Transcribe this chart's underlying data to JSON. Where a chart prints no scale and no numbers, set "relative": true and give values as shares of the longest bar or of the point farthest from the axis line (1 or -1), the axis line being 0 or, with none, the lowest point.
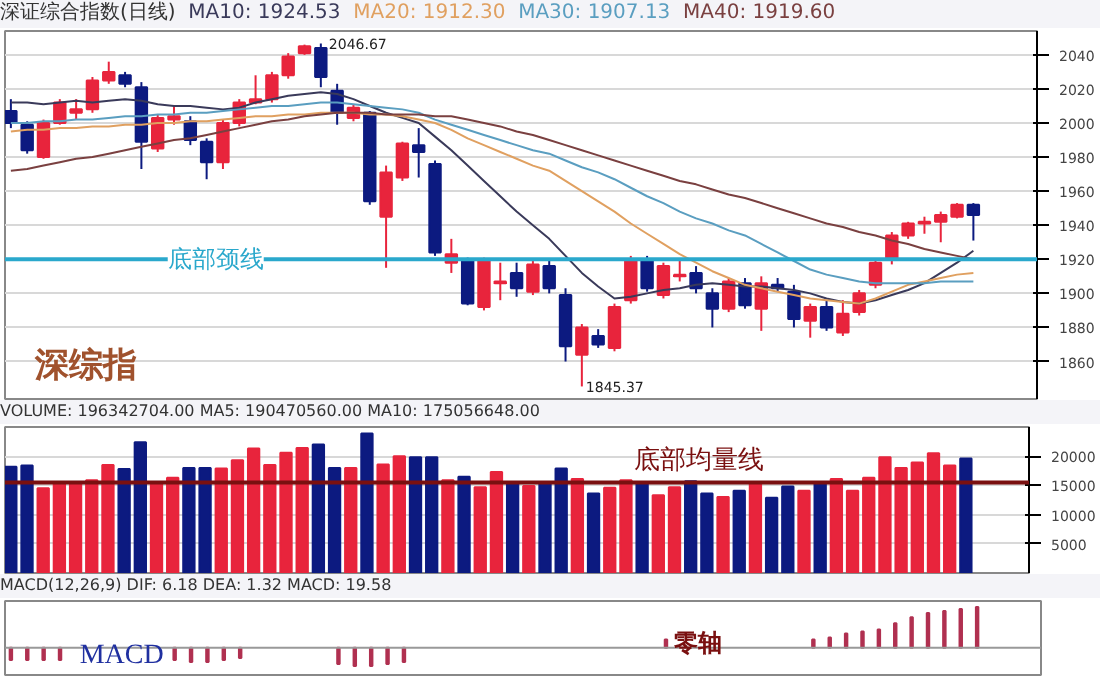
{
  "chart_data": [
    {
      "type": "candlestick",
      "title": "深证综合指数(日线)",
      "categories": [
        null,
        null,
        null,
        null,
        null,
        null,
        null,
        null,
        null,
        null,
        null,
        null,
        null,
        null,
        null,
        null,
        null,
        null,
        null,
        null,
        null,
        null,
        null,
        null,
        null,
        null,
        null,
        null,
        null,
        null,
        null,
        null,
        null,
        null,
        null,
        null,
        null,
        null,
        null,
        null,
        null,
        null,
        null,
        null,
        null,
        null,
        null,
        null,
        null,
        null,
        null,
        null,
        null,
        null,
        null,
        null,
        null,
        null,
        null,
        null
      ],
      "ohlc": [
        [
          2007,
          2014,
          1997,
          2000
        ],
        [
          1999,
          2001,
          1982,
          1984
        ],
        [
          1980,
          2002,
          1979,
          2000
        ],
        [
          2000,
          2014,
          1999,
          2012
        ],
        [
          2006,
          2014,
          2002,
          2008
        ],
        [
          2008,
          2027,
          2006,
          2025
        ],
        [
          2025,
          2036,
          2023,
          2030
        ],
        [
          2028,
          2030,
          2021,
          2023
        ],
        [
          2021,
          2024,
          1973,
          1989
        ],
        [
          1985,
          2005,
          1983,
          2003
        ],
        [
          2002,
          2010,
          1999,
          2004
        ],
        [
          2001,
          2004,
          1987,
          1990
        ],
        [
          1989,
          1991,
          1967,
          1977
        ],
        [
          1977,
          2002,
          1973,
          2000
        ],
        [
          2000,
          2014,
          1998,
          2012
        ],
        [
          2012,
          2028,
          2011,
          2014
        ],
        [
          2014,
          2030,
          2012,
          2028
        ],
        [
          2028,
          2041,
          2026,
          2039
        ],
        [
          2041,
          2046,
          2040,
          2045
        ],
        [
          2044,
          2046.67,
          2021,
          2027
        ],
        [
          2019,
          2023,
          1999,
          2006
        ],
        [
          2003,
          2011,
          2001,
          2009
        ],
        [
          2006,
          2007,
          1952,
          1954
        ],
        [
          1945,
          1975,
          1915,
          1971
        ],
        [
          1968,
          1989,
          1966,
          1988
        ],
        [
          1987,
          1997,
          1968,
          1983
        ],
        [
          1976,
          1978,
          1922,
          1924
        ],
        [
          1918,
          1932,
          1912,
          1923
        ],
        [
          1919,
          1921,
          1893,
          1894
        ],
        [
          1892,
          1921,
          1890,
          1919
        ],
        [
          1906,
          1918,
          1896,
          1907
        ],
        [
          1912,
          1918,
          1898,
          1903
        ],
        [
          1901,
          1919,
          1899,
          1917
        ],
        [
          1916,
          1920,
          1900,
          1903
        ],
        [
          1899,
          1903,
          1860,
          1869
        ],
        [
          1864,
          1882,
          1845.37,
          1880
        ],
        [
          1875,
          1879,
          1868,
          1870
        ],
        [
          1868,
          1894,
          1866,
          1892
        ],
        [
          1896,
          1922,
          1894,
          1920
        ],
        [
          1920,
          1922,
          1901,
          1903
        ],
        [
          1899,
          1918,
          1897,
          1916
        ],
        [
          1910,
          1919,
          1907,
          1911
        ],
        [
          1912,
          1916,
          1900,
          1903
        ],
        [
          1900,
          1903,
          1880,
          1891
        ],
        [
          1891,
          1909,
          1889,
          1907
        ],
        [
          1906,
          1909,
          1891,
          1893
        ],
        [
          1891,
          1910,
          1878,
          1906
        ],
        [
          1905,
          1909,
          1901,
          1903
        ],
        [
          1901,
          1905,
          1880,
          1885
        ],
        [
          1884,
          1894,
          1874,
          1892
        ],
        [
          1892,
          1896,
          1878,
          1880
        ],
        [
          1877,
          1896,
          1875,
          1888
        ],
        [
          1889,
          1902,
          1887,
          1900
        ],
        [
          1905,
          1920,
          1903,
          1918
        ],
        [
          1920,
          1936,
          1917,
          1934
        ],
        [
          1934,
          1942,
          1932,
          1941
        ],
        [
          1941,
          1945,
          1935,
          1942
        ],
        [
          1942,
          1948,
          1930,
          1946
        ],
        [
          1945,
          1953,
          1944,
          1952
        ],
        [
          1952,
          1953,
          1931,
          1946
        ]
      ],
      "colors": [
        "#0c1a80",
        "#0c1a80",
        "#e8243c",
        "#e8243c",
        "#e8243c",
        "#e8243c",
        "#e8243c",
        "#0c1a80",
        "#0c1a80",
        "#e8243c",
        "#e8243c",
        "#0c1a80",
        "#0c1a80",
        "#e8243c",
        "#e8243c",
        "#e8243c",
        "#e8243c",
        "#e8243c",
        "#e8243c",
        "#0c1a80",
        "#0c1a80",
        "#e8243c",
        "#0c1a80",
        "#e8243c",
        "#e8243c",
        "#0c1a80",
        "#0c1a80",
        "#e8243c",
        "#0c1a80",
        "#e8243c",
        "#e8243c",
        "#0c1a80",
        "#e8243c",
        "#0c1a80",
        "#0c1a80",
        "#e8243c",
        "#0c1a80",
        "#e8243c",
        "#e8243c",
        "#0c1a80",
        "#e8243c",
        "#e8243c",
        "#0c1a80",
        "#0c1a80",
        "#e8243c",
        "#0c1a80",
        "#e8243c",
        "#0c1a80",
        "#0c1a80",
        "#e8243c",
        "#0c1a80",
        "#e8243c",
        "#e8243c",
        "#e8243c",
        "#e8243c",
        "#e8243c",
        "#e8243c",
        "#e8243c",
        "#e8243c",
        "#0c1a80"
      ],
      "series": [
        {
          "name": "MA10: 1924.53",
          "color": "#3a3a5a",
          "type": "line",
          "values": [
            2012,
            2012,
            2011,
            2012,
            2013,
            2012,
            2013,
            2014,
            2013,
            2011,
            2010,
            2010,
            2009,
            2008,
            2009,
            2012,
            2014,
            2016,
            2017,
            2018,
            2017,
            2014,
            2010,
            2006,
            2003,
            2000,
            1992,
            1984,
            1975,
            1966,
            1957,
            1948,
            1940,
            1932,
            1922,
            1912,
            1904,
            1897,
            1898,
            1900,
            1902,
            1903,
            1905,
            1906,
            1905,
            1904,
            1904,
            1903,
            1902,
            1900,
            1897,
            1895,
            1894,
            1896,
            1899,
            1902,
            1906,
            1912,
            1918,
            1925
          ]
        },
        {
          "name": "MA20: 1912.30",
          "color": "#e0a060",
          "type": "line",
          "values": [
            1995,
            1996,
            1996,
            1997,
            1997,
            1998,
            1998,
            1999,
            1999,
            2000,
            2000,
            2001,
            2001,
            2002,
            2003,
            2004,
            2004,
            2005,
            2005,
            2006,
            2006,
            2006,
            2005,
            2005,
            2004,
            2002,
            2000,
            1996,
            1991,
            1987,
            1983,
            1979,
            1975,
            1972,
            1966,
            1960,
            1954,
            1948,
            1941,
            1935,
            1929,
            1923,
            1918,
            1913,
            1909,
            1905,
            1903,
            1901,
            1899,
            1897,
            1896,
            1895,
            1894,
            1897,
            1901,
            1905,
            1907,
            1909,
            1911,
            1912
          ]
        },
        {
          "name": "MA30: 1907.13",
          "color": "#5a9ec0",
          "type": "line",
          "values": [
            2000,
            2000,
            2001,
            2001,
            2002,
            2002,
            2003,
            2004,
            2004,
            2005,
            2005,
            2006,
            2006,
            2007,
            2008,
            2009,
            2010,
            2010,
            2011,
            2012,
            2012,
            2011,
            2010,
            2009,
            2008,
            2006,
            2002,
            1999,
            1996,
            1993,
            1990,
            1987,
            1984,
            1982,
            1978,
            1974,
            1971,
            1967,
            1962,
            1957,
            1953,
            1948,
            1944,
            1941,
            1937,
            1934,
            1929,
            1924,
            1919,
            1914,
            1911,
            1909,
            1907,
            1906,
            1906,
            1906,
            1906,
            1907,
            1907,
            1907
          ]
        },
        {
          "name": "MA40: 1919.60",
          "color": "#7a4040",
          "type": "line",
          "values": [
            1972,
            1973,
            1975,
            1977,
            1979,
            1980,
            1982,
            1984,
            1986,
            1988,
            1990,
            1991,
            1993,
            1995,
            1997,
            1999,
            2001,
            2002,
            2004,
            2005,
            2006,
            2006,
            2006,
            2005,
            2005,
            2005,
            2004,
            2004,
            2002,
            2000,
            1998,
            1995,
            1993,
            1990,
            1987,
            1984,
            1981,
            1978,
            1975,
            1972,
            1969,
            1966,
            1964,
            1961,
            1958,
            1956,
            1953,
            1950,
            1947,
            1944,
            1941,
            1939,
            1936,
            1934,
            1931,
            1929,
            1926,
            1924,
            1922,
            1920
          ]
        }
      ],
      "ylim": [
        1838,
        2054
      ],
      "yticks": [
        1860,
        1880,
        1900,
        1920,
        1940,
        1960,
        1980,
        2000,
        2020,
        2040
      ],
      "grid": "y",
      "legend": "top left",
      "tick_labels": "y",
      "ref_lines": [
        {
          "axis": "y",
          "value": 1920,
          "label": "底部颈线",
          "color": "#2aa8cc"
        }
      ],
      "annotations": [
        "深综指",
        "2046.67",
        "1845.37"
      ]
    },
    {
      "type": "bar",
      "title": "VOLUME: 196342704.00 MA5: 190470560.00 MA10: 175056648.00",
      "categories": [
        null,
        null,
        null,
        null,
        null,
        null,
        null,
        null,
        null,
        null,
        null,
        null,
        null,
        null,
        null,
        null,
        null,
        null,
        null,
        null,
        null,
        null,
        null,
        null,
        null,
        null,
        null,
        null,
        null,
        null,
        null,
        null,
        null,
        null,
        null,
        null,
        null,
        null,
        null,
        null,
        null,
        null,
        null,
        null,
        null,
        null,
        null,
        null,
        null,
        null,
        null,
        null,
        null,
        null,
        null,
        null,
        null,
        null,
        null,
        null
      ],
      "values": [
        18200,
        18400,
        14500,
        15300,
        15600,
        15900,
        18500,
        17800,
        22400,
        15600,
        16300,
        18000,
        18000,
        17900,
        19300,
        21300,
        18500,
        20600,
        21400,
        22000,
        18000,
        18000,
        23900,
        18600,
        20000,
        19800,
        19800,
        15900,
        16500,
        14700,
        17300,
        15400,
        14900,
        15600,
        17900,
        16100,
        13600,
        14600,
        15900,
        15600,
        13300,
        14700,
        15700,
        13600,
        13000,
        14100,
        15300,
        12900,
        14800,
        14100,
        15400,
        16100,
        14100,
        16300,
        19800,
        18000,
        18900,
        20500,
        18400,
        19600
      ],
      "colors": [
        "#0c1a80",
        "#0c1a80",
        "#e8243c",
        "#e8243c",
        "#e8243c",
        "#e8243c",
        "#e8243c",
        "#0c1a80",
        "#0c1a80",
        "#e8243c",
        "#e8243c",
        "#0c1a80",
        "#0c1a80",
        "#e8243c",
        "#e8243c",
        "#e8243c",
        "#e8243c",
        "#e8243c",
        "#e8243c",
        "#0c1a80",
        "#0c1a80",
        "#e8243c",
        "#0c1a80",
        "#e8243c",
        "#e8243c",
        "#0c1a80",
        "#0c1a80",
        "#e8243c",
        "#0c1a80",
        "#e8243c",
        "#e8243c",
        "#0c1a80",
        "#e8243c",
        "#0c1a80",
        "#0c1a80",
        "#e8243c",
        "#0c1a80",
        "#e8243c",
        "#e8243c",
        "#0c1a80",
        "#e8243c",
        "#e8243c",
        "#0c1a80",
        "#0c1a80",
        "#e8243c",
        "#0c1a80",
        "#e8243c",
        "#0c1a80",
        "#0c1a80",
        "#e8243c",
        "#0c1a80",
        "#e8243c",
        "#e8243c",
        "#e8243c",
        "#e8243c",
        "#e8243c",
        "#e8243c",
        "#e8243c",
        "#e8243c",
        "#0c1a80"
      ],
      "ylim": [
        0,
        25000
      ],
      "yticks": [
        5000,
        10000,
        15000,
        20000
      ],
      "grid": "y",
      "tick_labels": "y",
      "ref_lines": [
        {
          "axis": "y",
          "value": 15500,
          "label": "底部均量线",
          "color": "#7a1010"
        }
      ]
    },
    {
      "type": "bar",
      "title": "MACD(12,26,9) DIF: 6.18 DEA: 1.32 MACD: 19.58",
      "relative": true,
      "categories": [
        null,
        null,
        null,
        null,
        null,
        null,
        null,
        null,
        null,
        null,
        null,
        null,
        null,
        null,
        null,
        null,
        null,
        null,
        null,
        null,
        null,
        null,
        null,
        null,
        null,
        null,
        null,
        null,
        null,
        null,
        null,
        null,
        null,
        null,
        null,
        null,
        null,
        null,
        null,
        null,
        null,
        null,
        null,
        null,
        null,
        null,
        null,
        null,
        null,
        null,
        null,
        null,
        null,
        null,
        null,
        null,
        null,
        null,
        null,
        null
      ],
      "values": [
        -0.3,
        -0.3,
        -0.3,
        -0.3,
        null,
        null,
        null,
        null,
        null,
        null,
        -0.3,
        -0.35,
        -0.35,
        -0.3,
        -0.25,
        null,
        null,
        null,
        null,
        null,
        -0.4,
        -0.45,
        -0.45,
        -0.4,
        -0.35,
        null,
        null,
        null,
        null,
        null,
        null,
        null,
        null,
        null,
        null,
        null,
        null,
        null,
        null,
        null,
        0.2,
        null,
        null,
        null,
        null,
        null,
        null,
        null,
        null,
        0.2,
        0.25,
        0.35,
        0.4,
        0.45,
        0.6,
        0.75,
        0.85,
        0.9,
        0.95,
        1.0
      ],
      "color": "#b03050",
      "annotations": [
        "MACD",
        "零轴"
      ]
    }
  ]
}
